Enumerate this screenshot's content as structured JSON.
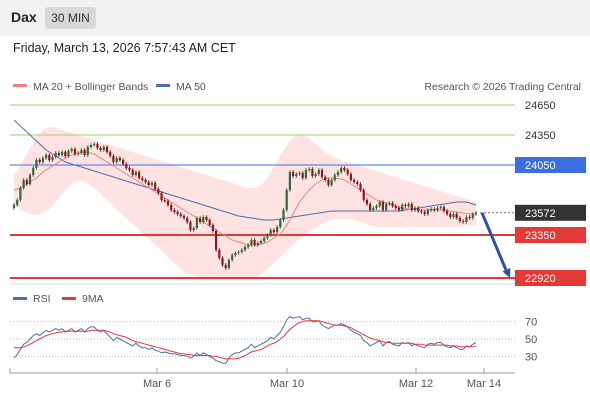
{
  "header": {
    "symbol": "Dax",
    "timeframe": "30 MIN",
    "datetime": "Friday, March 13, 2026 7:57:43 AM CET"
  },
  "legend": {
    "ma20_bb": "MA 20 + Bollinger Bands",
    "ma50": "MA 50",
    "credit": "Research © 2026 Trading Central",
    "rsi": "RSI",
    "rsi9": "9MA"
  },
  "colors": {
    "ma20": "#f08080",
    "ma50": "#4a6fae",
    "band": "#ffd9d9",
    "up": "#2f6b3a",
    "down": "#8b1a1a",
    "support": "#e53935",
    "resistance_green": "#a8cc70",
    "resistance_blue": "#3b6fe0",
    "arrow": "#2a5599",
    "last_price_bg": "#333333"
  },
  "chart_data": {
    "type": "candlestick",
    "ylim": [
      22900,
      24700
    ],
    "x_ticks": [
      "Mar 6",
      "Mar 10",
      "Mar 12",
      "Mar 14"
    ],
    "current_price": 23572,
    "levels": [
      {
        "value": 24650,
        "label": "24650",
        "kind": "resistance"
      },
      {
        "value": 24350,
        "label": "24350",
        "kind": "resistance"
      },
      {
        "value": 24050,
        "label": "24050",
        "kind": "pivot"
      },
      {
        "value": 23572,
        "label": "23572",
        "kind": "last"
      },
      {
        "value": 23350,
        "label": "23350",
        "kind": "support"
      },
      {
        "value": 22920,
        "label": "22920",
        "kind": "support"
      }
    ],
    "forecast": {
      "from": 23572,
      "to": 22920,
      "direction": "down"
    },
    "close": [
      23651,
      23700,
      23820,
      23900,
      23860,
      23950,
      24020,
      24100,
      24080,
      24120,
      24150,
      24100,
      24130,
      24170,
      24150,
      24180,
      24140,
      24190,
      24210,
      24160,
      24170,
      24200,
      24150,
      24230,
      24250,
      24260,
      24220,
      24200,
      24230,
      24180,
      24140,
      24080,
      24120,
      24100,
      24060,
      24020,
      24000,
      23950,
      23980,
      23920,
      23900,
      23880,
      23850,
      23870,
      23810,
      23770,
      23700,
      23690,
      23650,
      23600,
      23580,
      23560,
      23540,
      23520,
      23480,
      23400,
      23420,
      23520,
      23480,
      23530,
      23500,
      23450,
      23390,
      23200,
      23120,
      23050,
      23020,
      23100,
      23150,
      23170,
      23180,
      23200,
      23230,
      23250,
      23300,
      23250,
      23270,
      23290,
      23320,
      23350,
      23400,
      23380,
      23430,
      23500,
      23600,
      23800,
      23980,
      23940,
      23960,
      23970,
      23920,
      24000,
      24010,
      23940,
      23960,
      24000,
      23930,
      23900,
      23850,
      23900,
      23950,
      23980,
      24020,
      24000,
      23960,
      23900,
      23880,
      23860,
      23800,
      23700,
      23660,
      23600,
      23620,
      23640,
      23680,
      23600,
      23660,
      23670,
      23640,
      23620,
      23600,
      23650,
      23640,
      23660,
      23600,
      23620,
      23590,
      23580,
      23560,
      23600,
      23610,
      23600,
      23620,
      23630,
      23590,
      23560,
      23530,
      23560,
      23520,
      23490,
      23480,
      23530,
      23520,
      23560,
      23572
    ],
    "ma20": [
      23800,
      23810,
      23820,
      23840,
      23860,
      23880,
      23900,
      23920,
      23950,
      23980,
      24000,
      24020,
      24040,
      24060,
      24080,
      24100,
      24120,
      24140,
      24150,
      24160,
      24170,
      24175,
      24180,
      24175,
      24170,
      24160,
      24140,
      24120,
      24100,
      24080,
      24060,
      24040,
      24020,
      24000,
      23980,
      23960,
      23940,
      23920,
      23900,
      23880,
      23860,
      23840,
      23820,
      23800,
      23780,
      23760,
      23740,
      23720,
      23700,
      23680,
      23660,
      23640,
      23620,
      23600,
      23580,
      23560,
      23540,
      23520,
      23500,
      23480,
      23460,
      23440,
      23420,
      23400,
      23380,
      23360,
      23340,
      23320,
      23300,
      23290,
      23280,
      23270,
      23260,
      23250,
      23250,
      23250,
      23250,
      23260,
      23270,
      23280,
      23300,
      23320,
      23340,
      23360,
      23400,
      23450,
      23500,
      23560,
      23620,
      23680,
      23720,
      23760,
      23800,
      23830,
      23860,
      23880,
      23900,
      23910,
      23920,
      23920,
      23920,
      23915,
      23910,
      23900,
      23880,
      23860,
      23840,
      23820,
      23800,
      23780,
      23760,
      23740,
      23720,
      23700,
      23690,
      23680,
      23670,
      23660,
      23650,
      23640,
      23630,
      23620,
      23615,
      23610,
      23605,
      23600,
      23600,
      23600,
      23600,
      23600,
      23600,
      23600,
      23600,
      23600,
      23600,
      23595,
      23590,
      23585,
      23580,
      23575,
      23570,
      23565,
      23560,
      23560,
      23560
    ],
    "ma50": [
      24500,
      24470,
      24440,
      24410,
      24380,
      24350,
      24320,
      24290,
      24260,
      24230,
      24200,
      24180,
      24160,
      24140,
      24120,
      24100,
      24080,
      24070,
      24060,
      24050,
      24040,
      24030,
      24020,
      24010,
      24000,
      23990,
      23980,
      23970,
      23960,
      23950,
      23940,
      23930,
      23920,
      23910,
      23900,
      23890,
      23880,
      23870,
      23860,
      23850,
      23840,
      23830,
      23820,
      23810,
      23800,
      23790,
      23780,
      23770,
      23760,
      23750,
      23740,
      23730,
      23720,
      23710,
      23700,
      23690,
      23680,
      23670,
      23660,
      23650,
      23640,
      23630,
      23620,
      23610,
      23600,
      23590,
      23580,
      23570,
      23560,
      23550,
      23540,
      23535,
      23530,
      23525,
      23520,
      23515,
      23510,
      23505,
      23500,
      23500,
      23500,
      23500,
      23505,
      23510,
      23515,
      23520,
      23525,
      23530,
      23535,
      23540,
      23545,
      23550,
      23555,
      23560,
      23565,
      23570,
      23575,
      23580,
      23585,
      23590,
      23590,
      23590,
      23590,
      23590,
      23590,
      23590,
      23590,
      23590,
      23590,
      23590,
      23590,
      23590,
      23590,
      23590,
      23590,
      23590,
      23590,
      23590,
      23590,
      23590,
      23590,
      23595,
      23600,
      23605,
      23610,
      23615,
      23620,
      23625,
      23630,
      23635,
      23640,
      23645,
      23650,
      23655,
      23660,
      23665,
      23670,
      23675,
      23680,
      23680,
      23680,
      23680,
      23670,
      23660,
      23650
    ],
    "bb_upper": [
      23950,
      23990,
      24040,
      24100,
      24160,
      24220,
      24280,
      24330,
      24370,
      24400,
      24420,
      24430,
      24430,
      24420,
      24410,
      24400,
      24390,
      24380,
      24370,
      24360,
      24350,
      24340,
      24330,
      24320,
      24310,
      24300,
      24290,
      24280,
      24270,
      24260,
      24250,
      24240,
      24230,
      24220,
      24210,
      24200,
      24190,
      24180,
      24170,
      24160,
      24150,
      24140,
      24130,
      24120,
      24110,
      24100,
      24090,
      24080,
      24070,
      24060,
      24050,
      24040,
      24030,
      24020,
      24010,
      24000,
      23990,
      23980,
      23970,
      23960,
      23950,
      23940,
      23930,
      23920,
      23910,
      23900,
      23890,
      23880,
      23870,
      23860,
      23850,
      23840,
      23830,
      23820,
      23820,
      23820,
      23830,
      23850,
      23880,
      23920,
      23970,
      24030,
      24090,
      24150,
      24200,
      24250,
      24290,
      24320,
      24340,
      24350,
      24350,
      24340,
      24320,
      24290,
      24260,
      24230,
      24200,
      24180,
      24160,
      24140,
      24120,
      24110,
      24100,
      24090,
      24080,
      24070,
      24060,
      24050,
      24040,
      24030,
      24020,
      24010,
      24000,
      23990,
      23980,
      23970,
      23960,
      23950,
      23940,
      23930,
      23920,
      23910,
      23900,
      23890,
      23880,
      23870,
      23860,
      23850,
      23840,
      23830,
      23820,
      23810,
      23800,
      23790,
      23780,
      23770,
      23760,
      23750,
      23740,
      23730,
      23720,
      23710,
      23700,
      23690,
      23680
    ],
    "bb_lower": [
      23650,
      23630,
      23610,
      23590,
      23570,
      23560,
      23550,
      23550,
      23560,
      23570,
      23590,
      23610,
      23640,
      23680,
      23720,
      23760,
      23800,
      23830,
      23860,
      23880,
      23890,
      23890,
      23880,
      23860,
      23840,
      23820,
      23790,
      23760,
      23730,
      23700,
      23670,
      23640,
      23610,
      23580,
      23550,
      23520,
      23490,
      23460,
      23430,
      23400,
      23370,
      23340,
      23310,
      23280,
      23250,
      23220,
      23190,
      23160,
      23130,
      23100,
      23070,
      23040,
      23010,
      22980,
      22960,
      22950,
      22940,
      22930,
      22920,
      22920,
      22920,
      22920,
      22920,
      22920,
      22920,
      22920,
      22920,
      22920,
      22920,
      22920,
      22920,
      22920,
      22920,
      22920,
      22920,
      22920,
      22930,
      22950,
      22980,
      23010,
      23040,
      23070,
      23100,
      23130,
      23160,
      23190,
      23220,
      23250,
      23280,
      23310,
      23340,
      23360,
      23380,
      23400,
      23420,
      23440,
      23460,
      23480,
      23490,
      23500,
      23510,
      23510,
      23510,
      23510,
      23510,
      23510,
      23500,
      23490,
      23480,
      23470,
      23460,
      23450,
      23440,
      23430,
      23430,
      23430,
      23430,
      23430,
      23430,
      23430,
      23430,
      23430,
      23430,
      23430,
      23430,
      23430,
      23430,
      23430,
      23430,
      23430,
      23430,
      23430,
      23430,
      23430,
      23430,
      23430,
      23430,
      23430,
      23430,
      23430,
      23440,
      23440,
      23440,
      23440,
      23440
    ],
    "rsi": {
      "ylim": [
        20,
        80
      ],
      "ticks": [
        70,
        50,
        30
      ],
      "rsi": [
        28,
        32,
        38,
        44,
        46,
        50,
        54,
        56,
        54,
        57,
        60,
        58,
        60,
        62,
        60,
        62,
        58,
        60,
        62,
        58,
        60,
        62,
        58,
        62,
        64,
        64,
        60,
        58,
        60,
        56,
        52,
        48,
        52,
        50,
        48,
        46,
        44,
        42,
        45,
        42,
        40,
        40,
        38,
        40,
        37,
        36,
        34,
        35,
        34,
        33,
        33,
        32,
        31,
        31,
        30,
        28,
        30,
        34,
        31,
        34,
        32,
        30,
        28,
        25,
        24,
        22,
        22,
        28,
        32,
        34,
        34,
        36,
        38,
        40,
        44,
        40,
        42,
        44,
        46,
        48,
        52,
        50,
        54,
        58,
        64,
        72,
        76,
        74,
        75,
        76,
        72,
        74,
        74,
        70,
        70,
        71,
        66,
        64,
        62,
        64,
        66,
        66,
        68,
        66,
        64,
        60,
        58,
        56,
        54,
        48,
        46,
        42,
        44,
        46,
        48,
        42,
        46,
        47,
        44,
        43,
        42,
        46,
        45,
        46,
        42,
        44,
        42,
        41,
        40,
        44,
        45,
        44,
        46,
        46,
        43,
        41,
        40,
        42,
        40,
        38,
        38,
        42,
        41,
        44,
        46
      ],
      "ma9": [
        40,
        40,
        40,
        41,
        42,
        44,
        46,
        48,
        50,
        52,
        54,
        55,
        56,
        57,
        58,
        58,
        59,
        59,
        59,
        59,
        59,
        59,
        59,
        59,
        60,
        60,
        60,
        60,
        60,
        59,
        58,
        56,
        55,
        54,
        53,
        52,
        50,
        48,
        47,
        46,
        45,
        44,
        43,
        42,
        41,
        40,
        39,
        38,
        37,
        36,
        35,
        34,
        33,
        33,
        32,
        32,
        31,
        31,
        31,
        31,
        31,
        31,
        30,
        30,
        29,
        28,
        27,
        27,
        27,
        27,
        28,
        29,
        31,
        33,
        35,
        36,
        37,
        38,
        40,
        42,
        44,
        45,
        47,
        50,
        53,
        57,
        61,
        64,
        67,
        69,
        70,
        71,
        71,
        71,
        71,
        71,
        70,
        69,
        68,
        67,
        66,
        66,
        66,
        65,
        64,
        63,
        61,
        59,
        57,
        55,
        53,
        51,
        50,
        49,
        48,
        47,
        46,
        46,
        45,
        45,
        45,
        45,
        45,
        45,
        45,
        44,
        44,
        44,
        43,
        43,
        43,
        43,
        43,
        43,
        43,
        43,
        42,
        42,
        42,
        41,
        41,
        41,
        41,
        41,
        42
      ]
    }
  }
}
